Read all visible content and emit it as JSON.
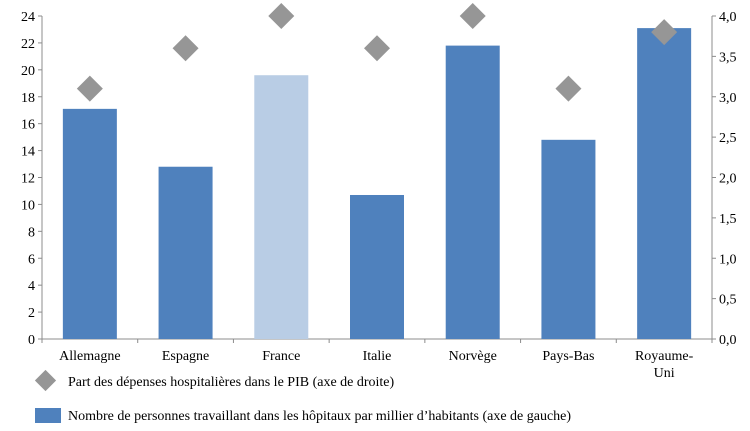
{
  "chart_data": {
    "type": "bar",
    "categories": [
      "Allemagne",
      "Espagne",
      "France",
      "Italie",
      "Norvège",
      "Pays-Bas",
      "Royaume-Uni"
    ],
    "category_lines": [
      [
        "Allemagne"
      ],
      [
        "Espagne"
      ],
      [
        "France"
      ],
      [
        "Italie"
      ],
      [
        "Norvège"
      ],
      [
        "Pays-Bas"
      ],
      [
        "Royaume-",
        "Uni"
      ]
    ],
    "series": [
      {
        "name": "Nombre de personnes travaillant dans les hôpitaux par millier d’habitants (axe de gauche)",
        "axis": "left",
        "mark": "bar",
        "values": [
          17.1,
          12.8,
          19.6,
          10.7,
          21.8,
          14.8,
          23.1
        ],
        "colors": [
          "#4f81bd",
          "#4f81bd",
          "#b9cde5",
          "#4f81bd",
          "#4f81bd",
          "#4f81bd",
          "#4f81bd"
        ]
      },
      {
        "name": "Part des dépenses hospitalières dans le PIB (axe de droite)",
        "axis": "right",
        "mark": "diamond",
        "values": [
          3.1,
          3.6,
          4.0,
          3.6,
          4.0,
          3.1,
          3.8
        ],
        "color": "#969696"
      }
    ],
    "y_left": {
      "ylim": [
        0,
        24
      ],
      "ticks": [
        "0",
        "2",
        "4",
        "6",
        "8",
        "10",
        "12",
        "14",
        "16",
        "18",
        "20",
        "22",
        "24"
      ]
    },
    "y_right": {
      "ylim": [
        0,
        4.0
      ],
      "ticks": [
        "0,0",
        "0,5",
        "1,0",
        "1,5",
        "2,0",
        "2,5",
        "3,0",
        "3,5",
        "4,0"
      ]
    },
    "title": "",
    "xlabel": "",
    "grid": false,
    "legend_placement": "bottom"
  }
}
